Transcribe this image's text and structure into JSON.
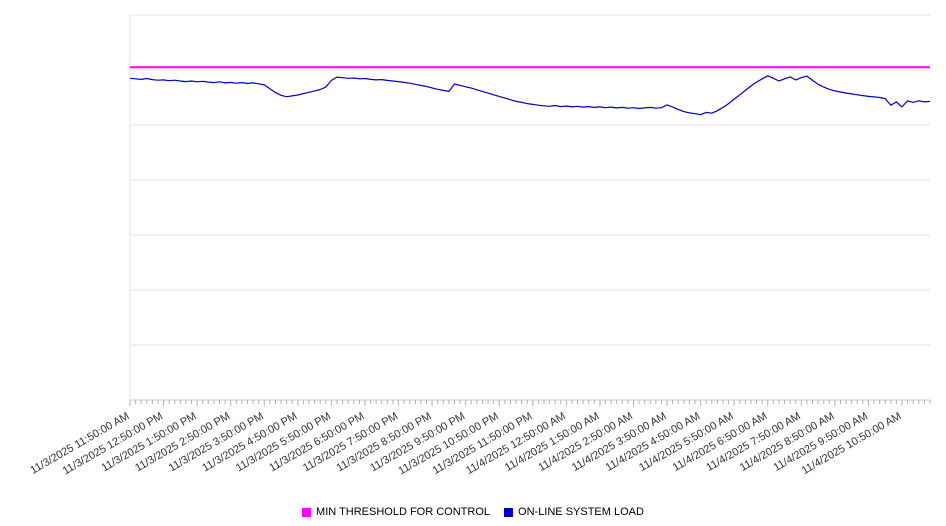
{
  "page": {
    "background": "#ffffff"
  },
  "chart_data": {
    "type": "line",
    "title": "",
    "xlabel": "",
    "ylabel": "",
    "ylim": [
      0,
      140
    ],
    "grid": true,
    "grid_step": 20,
    "legend_position": "bottom",
    "y_axis_labels_visible": false,
    "points_per_tick": 6,
    "x_tick_labels": [
      "11/3/2025 11:50:00 AM",
      "11/3/2025 12:50:00 PM",
      "11/3/2025 1:50:00 PM",
      "11/3/2025 2:50:00 PM",
      "11/3/2025 3:50:00 PM",
      "11/3/2025 4:50:00 PM",
      "11/3/2025 5:50:00 PM",
      "11/3/2025 6:50:00 PM",
      "11/3/2025 7:50:00 PM",
      "11/3/2025 8:50:00 PM",
      "11/3/2025 9:50:00 PM",
      "11/3/2025 10:50:00 PM",
      "11/3/2025 11:50:00 PM",
      "11/4/2025 12:50:00 AM",
      "11/4/2025 1:50:00 AM",
      "11/4/2025 2:50:00 AM",
      "11/4/2025 3:50:00 AM",
      "11/4/2025 4:50:00 AM",
      "11/4/2025 5:50:00 AM",
      "11/4/2025 6:50:00 AM",
      "11/4/2025 7:50:00 AM",
      "11/4/2025 8:50:00 AM",
      "11/4/2025 9:50:00 AM",
      "11/4/2025 10:50:00 AM"
    ],
    "series": [
      {
        "name": "MIN THRESHOLD FOR CONTROL",
        "type": "threshold",
        "color": "#ff00ff",
        "value": 121
      },
      {
        "name": "ON-LINE SYSTEM LOAD",
        "type": "line",
        "color": "#0000cc",
        "values": [
          117.0,
          116.8,
          116.6,
          116.9,
          116.5,
          116.3,
          116.4,
          116.1,
          116.3,
          116.0,
          115.8,
          116.0,
          115.7,
          115.9,
          115.6,
          115.4,
          115.7,
          115.3,
          115.5,
          115.2,
          115.4,
          115.1,
          115.3,
          115.0,
          114.6,
          113.2,
          111.8,
          110.8,
          110.3,
          110.6,
          110.9,
          111.4,
          111.9,
          112.4,
          112.9,
          113.8,
          116.2,
          117.4,
          117.2,
          117.0,
          117.1,
          116.8,
          116.9,
          116.6,
          116.4,
          116.5,
          116.2,
          116.0,
          115.8,
          115.5,
          115.2,
          114.8,
          114.4,
          114.0,
          113.5,
          113.0,
          112.6,
          112.2,
          114.9,
          114.4,
          113.9,
          113.4,
          112.8,
          112.2,
          111.6,
          111.0,
          110.4,
          109.8,
          109.2,
          108.6,
          108.2,
          107.8,
          107.5,
          107.2,
          107.0,
          106.8,
          107.1,
          106.7,
          106.9,
          106.6,
          106.8,
          106.5,
          106.7,
          106.4,
          106.6,
          106.3,
          106.5,
          106.2,
          106.4,
          106.1,
          106.3,
          106.0,
          106.2,
          106.4,
          106.1,
          106.3,
          107.3,
          106.5,
          105.6,
          104.9,
          104.4,
          104.1,
          103.8,
          104.6,
          104.3,
          105.2,
          106.4,
          107.8,
          109.4,
          111.0,
          112.6,
          114.2,
          115.6,
          116.8,
          117.9,
          117.0,
          116.0,
          116.8,
          117.5,
          116.4,
          117.2,
          117.8,
          116.2,
          114.8,
          113.8,
          113.0,
          112.4,
          112.0,
          111.6,
          111.3,
          111.0,
          110.7,
          110.4,
          110.2,
          110.0,
          109.6,
          107.2,
          108.4,
          106.6,
          108.8,
          108.2,
          108.8,
          108.4,
          108.6
        ]
      }
    ]
  }
}
